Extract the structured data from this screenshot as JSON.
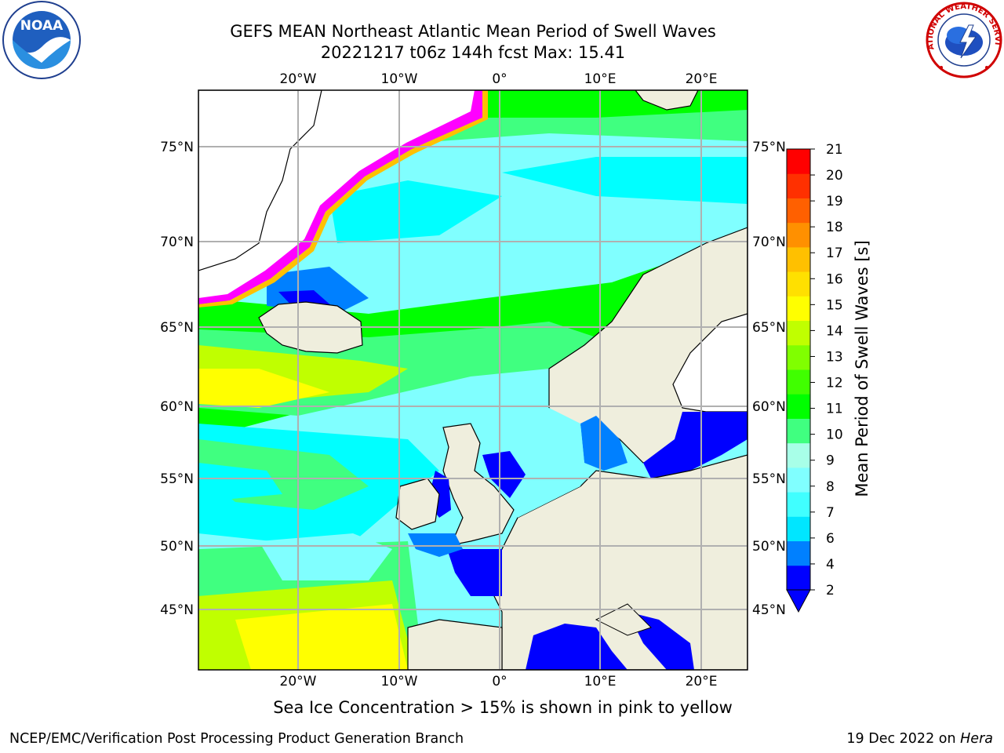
{
  "header": {
    "title_line1": "GEFS MEAN Northeast Atlantic Mean Period of Swell Waves",
    "title_line2": "20221217 t06z 144h fcst   Max: 15.41"
  },
  "logos": {
    "left": {
      "icon": "noaa-logo",
      "text": "NOAA"
    },
    "right": {
      "icon": "national-weather-service-logo",
      "text": "NATIONAL WEATHER SERVICE"
    }
  },
  "map": {
    "lon_ticks_top": [
      "20°W",
      "10°W",
      "0°",
      "10°E",
      "20°E"
    ],
    "lon_ticks_bottom": [
      "20°W",
      "10°W",
      "0°",
      "10°E",
      "20°E"
    ],
    "lat_ticks_left": [
      "75°N",
      "70°N",
      "65°N",
      "60°N",
      "55°N",
      "50°N",
      "45°N"
    ],
    "lat_ticks_right": [
      "75°N",
      "70°N",
      "65°N",
      "60°N",
      "55°N",
      "50°N",
      "45°N"
    ],
    "colors": {
      "land": "#efeedd",
      "ocean_low": "#0000ff",
      "ocean_mid": "#00ffff",
      "ocean_high": "#00ff00",
      "ocean_peak": "#ffff00",
      "sea_ice": "#ff00ff",
      "gridline": "#b0b0b0"
    }
  },
  "colorbar": {
    "label": "Mean Period of Swell Waves [s]",
    "ticks": [
      "2",
      "4",
      "6",
      "7",
      "8",
      "9",
      "10",
      "11",
      "12",
      "13",
      "14",
      "15",
      "16",
      "17",
      "18",
      "19",
      "20",
      "21"
    ],
    "colors": [
      "#0000ff",
      "#0080ff",
      "#00e6ff",
      "#40ffff",
      "#80ffff",
      "#a8ffe8",
      "#40ff80",
      "#00ff00",
      "#40ff00",
      "#80ff00",
      "#c0ff00",
      "#ffff00",
      "#ffe000",
      "#ffc000",
      "#ff9000",
      "#ff6000",
      "#ff3000",
      "#ff0000"
    ],
    "extend": "min"
  },
  "footnote": "Sea Ice Concentration > 15% is shown in pink to yellow",
  "footer": {
    "credit": "NCEP/EMC/Verification Post Processing Product Generation Branch",
    "date": "19 Dec 2022 on",
    "host": "Hera"
  }
}
